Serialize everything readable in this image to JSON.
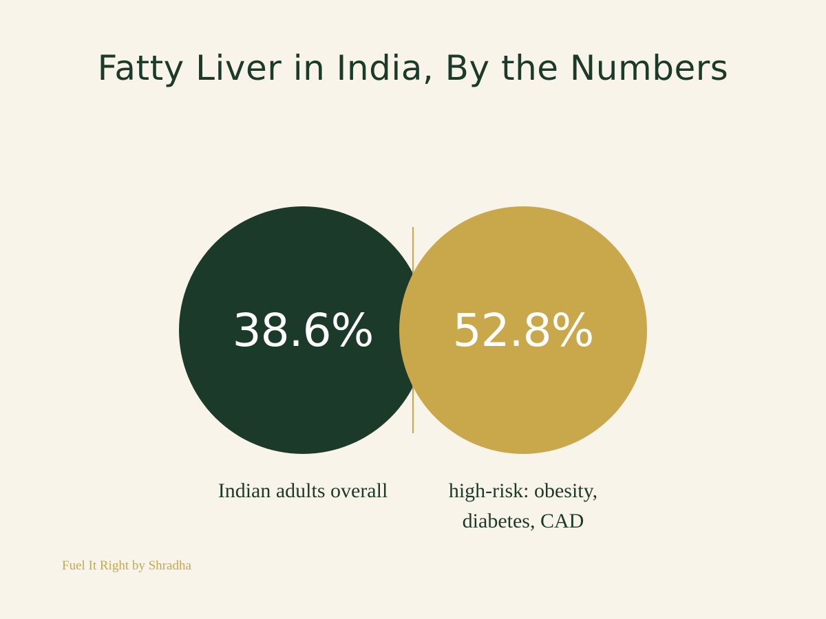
{
  "title": "Fatty Liver in India, By the Numbers",
  "stats": [
    {
      "value": "38.6%",
      "label": "Indian adults overall",
      "color": "#1c3a2a"
    },
    {
      "value": "52.8%",
      "label_line1": "high-risk: obesity,",
      "label_line2": "diabetes, CAD",
      "color": "#c8a84b"
    }
  ],
  "credit": "Fuel It Right by Shradha",
  "colors": {
    "background": "#f9f4ea",
    "primary": "#1c3a2a",
    "accent": "#c8a84b",
    "circle_text": "#ffffff"
  }
}
